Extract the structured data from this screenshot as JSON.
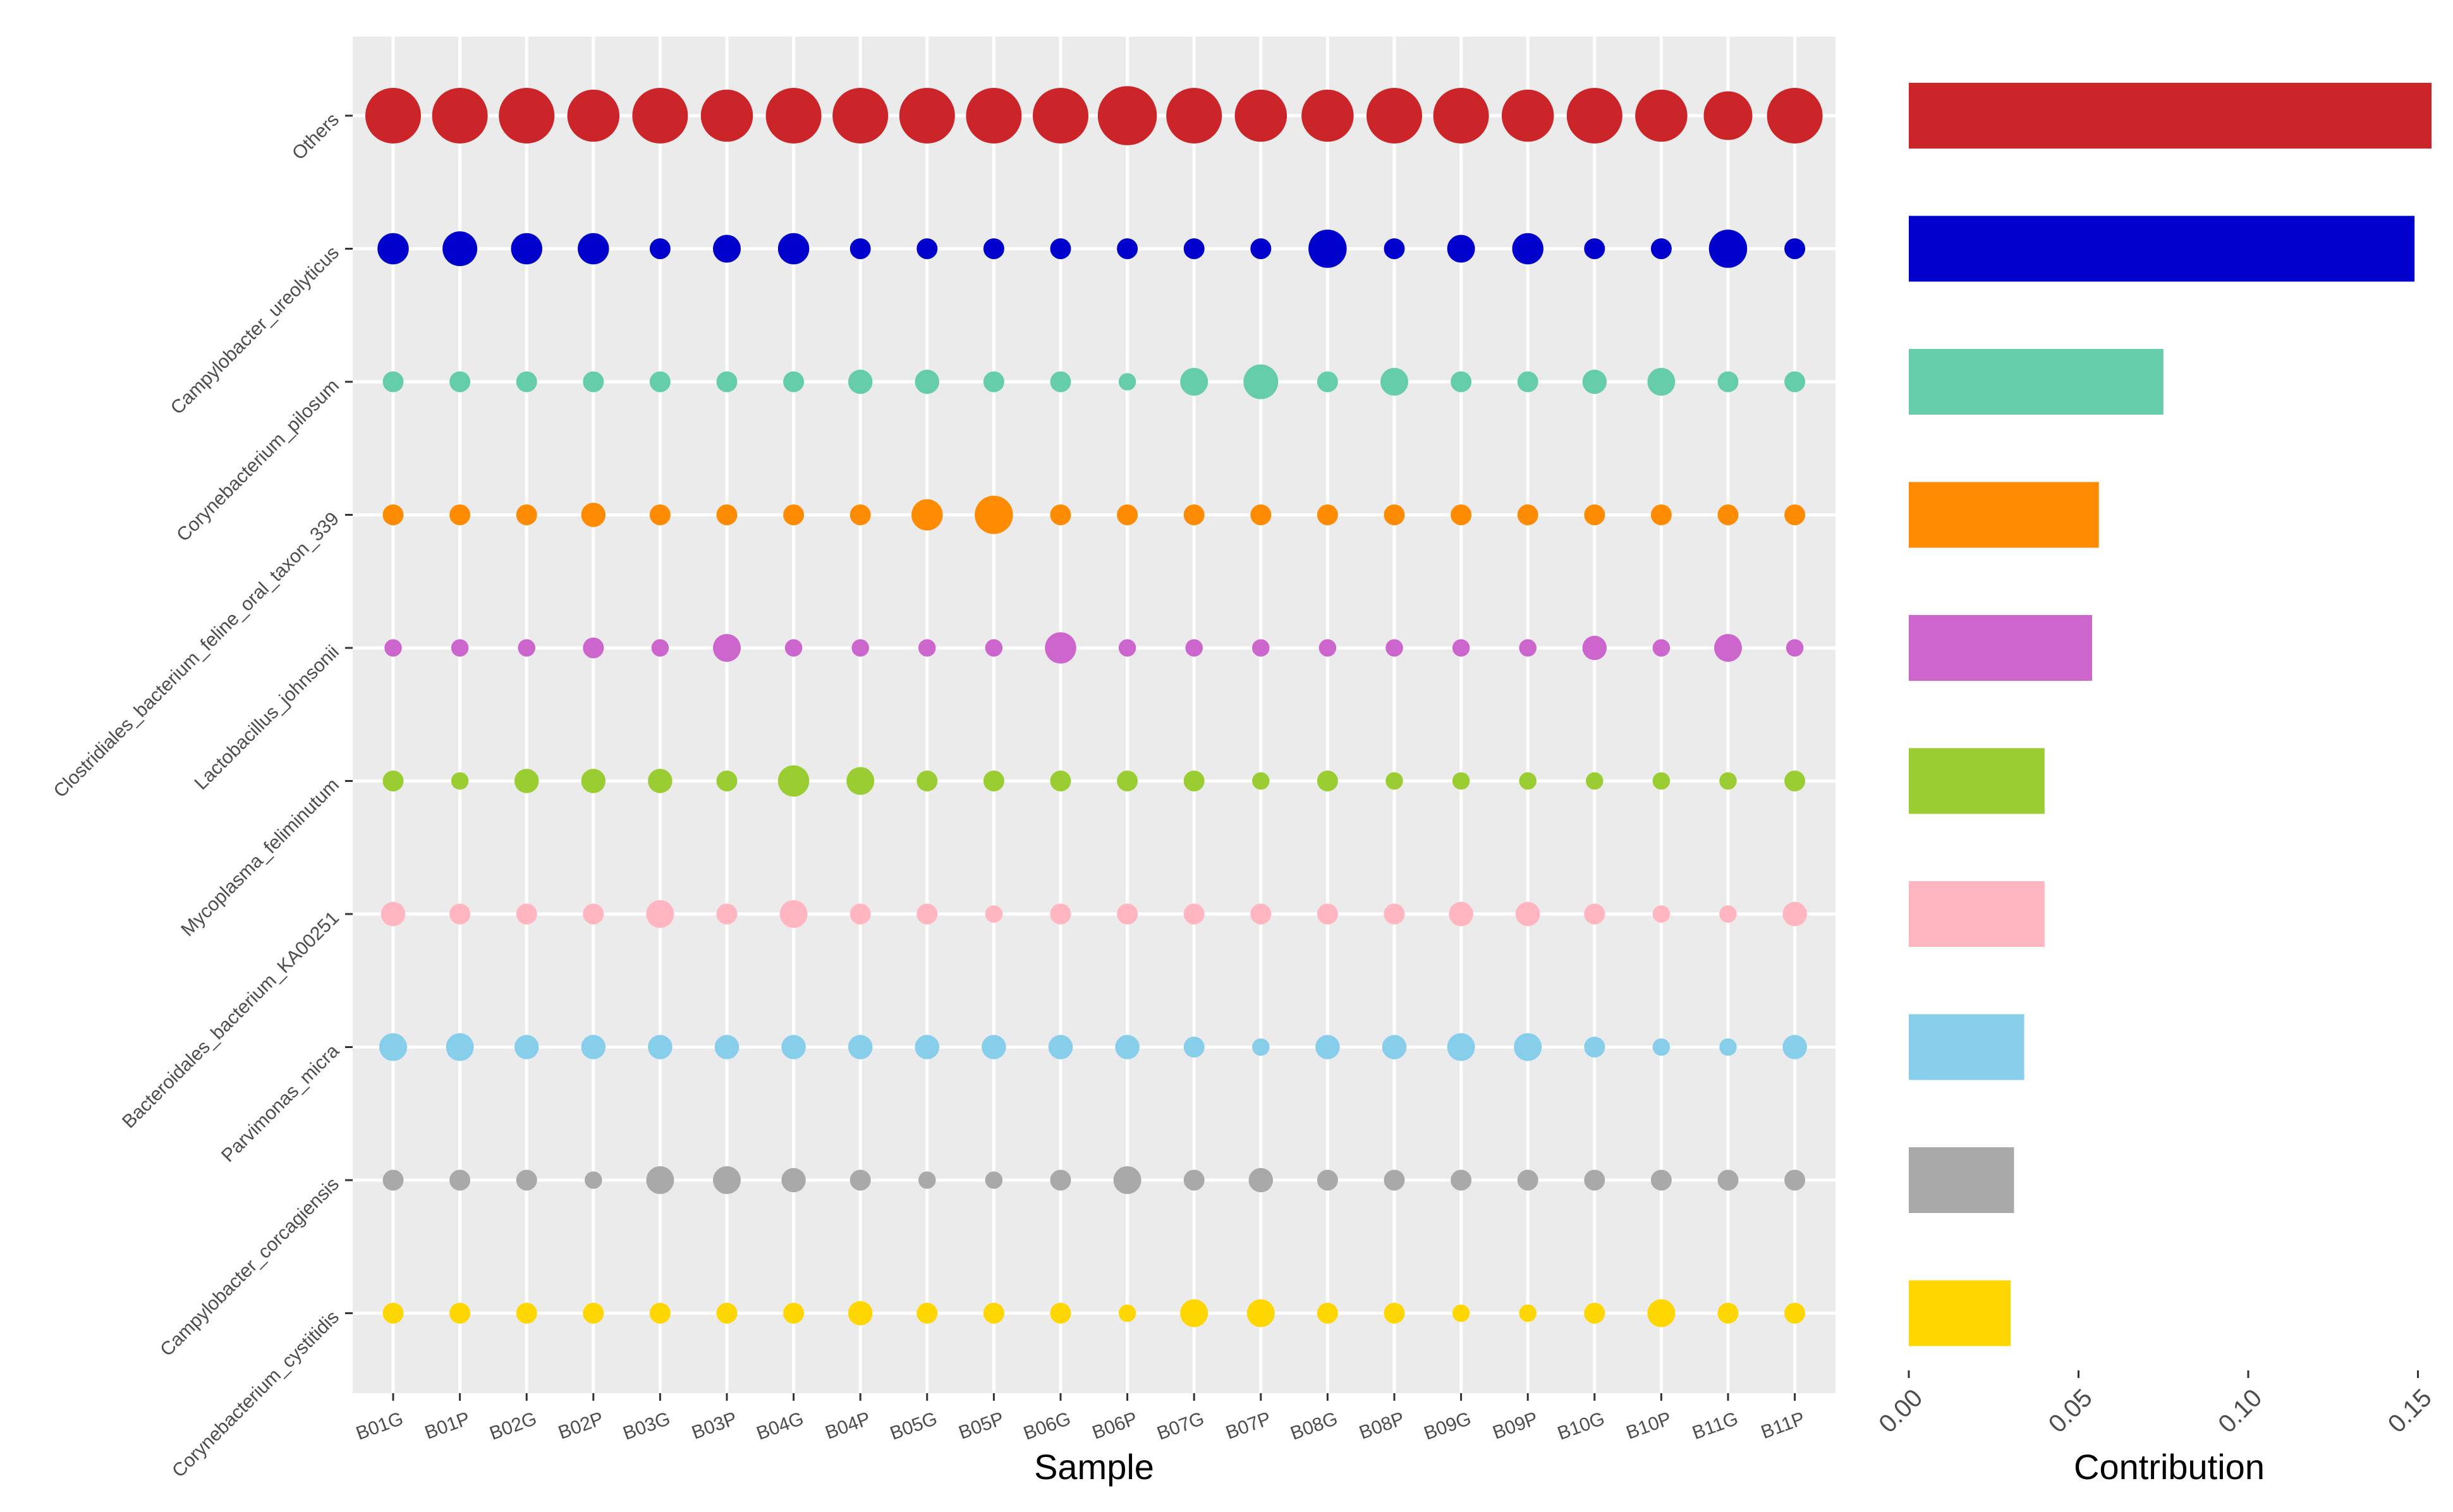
{
  "chart_data": [
    {
      "type": "scatter",
      "xlabel": "Sample",
      "ylabel": "",
      "grid": true,
      "legend": "none",
      "x_categories": [
        "B01G",
        "B01P",
        "B02G",
        "B02P",
        "B03G",
        "B03P",
        "B04G",
        "B04P",
        "B05G",
        "B05P",
        "B06G",
        "B06P",
        "B07G",
        "B07P",
        "B08G",
        "B08P",
        "B09G",
        "B09P",
        "B10G",
        "B10P",
        "B11G",
        "B11P"
      ],
      "y_categories": [
        "Others",
        "Campylobacter_ureolyticus",
        "Corynebacterium_pilosum",
        "Clostridiales_bacterium_feline_oral_taxon_339",
        "Lactobacillus_johnsonii",
        "Mycoplasma_feliminutum",
        "Bacteroidales_bacterium_KA00251",
        "Parvimonas_micra",
        "Campylobacter_corcagiensis",
        "Corynebacterium_cystitidis"
      ],
      "series": [
        {
          "category": "Others",
          "color": "#CC2529",
          "sizes": [
            8,
            8,
            8,
            7.5,
            8,
            7.5,
            8,
            8,
            8,
            8,
            8,
            8.5,
            8,
            7.5,
            7.5,
            8,
            8,
            7.5,
            8,
            7.5,
            7,
            8
          ]
        },
        {
          "category": "Campylobacter_ureolyticus",
          "color": "#0000CC",
          "sizes": [
            4.5,
            5,
            4.5,
            4.5,
            3,
            4,
            4.5,
            3,
            3,
            3,
            3,
            3,
            3,
            3,
            5.5,
            3,
            4,
            4.5,
            3,
            3,
            5.5,
            3
          ]
        },
        {
          "category": "Corynebacterium_pilosum",
          "color": "#66CDAA",
          "sizes": [
            3,
            3,
            3,
            3,
            3,
            3,
            3,
            3.5,
            3.5,
            3,
            3,
            2.5,
            4,
            5,
            3,
            4,
            3,
            3,
            3.5,
            4,
            3,
            3
          ]
        },
        {
          "category": "Clostridiales_bacterium_feline_oral_taxon_339",
          "color": "#FF8C00",
          "sizes": [
            3,
            3,
            3,
            3.5,
            3,
            3,
            3,
            3,
            4.5,
            5.5,
            3,
            3,
            3,
            3,
            3,
            3,
            3,
            3,
            3,
            3,
            3,
            3
          ]
        },
        {
          "category": "Lactobacillus_johnsonii",
          "color": "#CC66CC",
          "sizes": [
            2.5,
            2.5,
            2.5,
            3,
            2.5,
            4,
            2.5,
            2.5,
            2.5,
            2.5,
            4.5,
            2.5,
            2.5,
            2.5,
            2.5,
            2.5,
            2.5,
            2.5,
            3.5,
            2.5,
            4,
            2.5
          ]
        },
        {
          "category": "Mycoplasma_feliminutum",
          "color": "#9ACD32",
          "sizes": [
            3,
            2.5,
            3.5,
            3.5,
            3.5,
            3,
            4.5,
            4,
            3,
            3,
            3,
            3,
            3,
            2.5,
            3,
            2.5,
            2.5,
            2.5,
            2.5,
            2.5,
            2.5,
            3
          ]
        },
        {
          "category": "Bacteroidales_bacterium_KA00251",
          "color": "#FFB6C1",
          "sizes": [
            3.5,
            3,
            3,
            3,
            4,
            3,
            4,
            3,
            3,
            2.5,
            3,
            3,
            3,
            3,
            3,
            3,
            3.5,
            3.5,
            3,
            2.5,
            2.5,
            3.5
          ]
        },
        {
          "category": "Parvimonas_micra",
          "color": "#87CEEB",
          "sizes": [
            4,
            4,
            3.5,
            3.5,
            3.5,
            3.5,
            3.5,
            3.5,
            3.5,
            3.5,
            3.5,
            3.5,
            3,
            2.5,
            3.5,
            3.5,
            4,
            4,
            3,
            2.5,
            2.5,
            3.5
          ]
        },
        {
          "category": "Campylobacter_corcagiensis",
          "color": "#A9A9A9",
          "sizes": [
            3,
            3,
            3,
            2.5,
            4,
            4,
            3.5,
            3,
            2.5,
            2.5,
            3,
            4,
            3,
            3.5,
            3,
            3,
            3,
            3,
            3,
            3,
            3,
            3
          ]
        },
        {
          "category": "Corynebacterium_cystitidis",
          "color": "#FFD700",
          "sizes": [
            3,
            3,
            3,
            3,
            3,
            3,
            3,
            3.5,
            3,
            3,
            3,
            2.5,
            4,
            4,
            3,
            3,
            2.5,
            2.5,
            3,
            4,
            3,
            3
          ]
        }
      ]
    },
    {
      "type": "bar",
      "orientation": "horizontal",
      "xlabel": "Contribution",
      "ylabel": "",
      "xlim": [
        0,
        0.155
      ],
      "xticks": [
        "0.00",
        "0.05",
        "0.10",
        "0.15"
      ],
      "xtick_values": [
        0,
        0.05,
        0.1,
        0.15
      ],
      "categories": [
        "Others",
        "Campylobacter_ureolyticus",
        "Corynebacterium_pilosum",
        "Clostridiales_bacterium_feline_oral_taxon_339",
        "Lactobacillus_johnsonii",
        "Mycoplasma_feliminutum",
        "Bacteroidales_bacterium_KA00251",
        "Parvimonas_micra",
        "Campylobacter_corcagiensis",
        "Corynebacterium_cystitidis"
      ],
      "values": [
        0.154,
        0.149,
        0.075,
        0.056,
        0.054,
        0.04,
        0.04,
        0.034,
        0.031,
        0.03
      ],
      "colors": [
        "#CC2529",
        "#0000CC",
        "#66CDAA",
        "#FF8C00",
        "#CC66CC",
        "#9ACD32",
        "#FFB6C1",
        "#87CEEB",
        "#A9A9A9",
        "#FFD700"
      ]
    }
  ]
}
